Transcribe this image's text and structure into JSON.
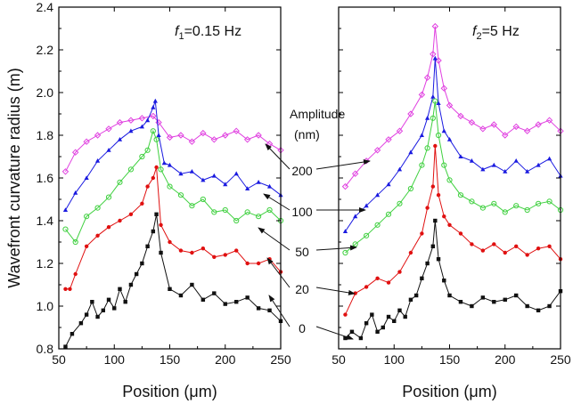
{
  "chart_data": {
    "type": "line",
    "ylabel": "Wavefront curvature radius (m)",
    "ylim": [
      0.8,
      2.4
    ],
    "yticks": [
      "0.8",
      "1.0",
      "1.2",
      "1.4",
      "1.6",
      "1.8",
      "2.0",
      "2.2",
      "2.4"
    ],
    "legend_title": "Amplitude",
    "legend_unit": "(nm)",
    "amplitude_labels": [
      "200",
      "100",
      "50",
      "20",
      "0"
    ],
    "panels": [
      {
        "xlabel": "Position (μm)",
        "xlim": [
          50,
          250
        ],
        "xticks": [
          "50",
          "100",
          "150",
          "200",
          "250"
        ],
        "freq_sym": "f",
        "freq_sub": "1",
        "freq_val": "=0.15 Hz",
        "series": [
          {
            "name": "200",
            "color": "#e040e0",
            "marker": "diamond-open",
            "x": [
              56,
              65,
              75,
              85,
              95,
              105,
              115,
              125,
              135,
              140,
              150,
              160,
              170,
              180,
              190,
              200,
              210,
              220,
              230,
              240,
              250
            ],
            "y": [
              1.63,
              1.72,
              1.77,
              1.8,
              1.83,
              1.86,
              1.87,
              1.88,
              1.89,
              1.86,
              1.79,
              1.8,
              1.77,
              1.81,
              1.78,
              1.8,
              1.82,
              1.78,
              1.8,
              1.76,
              1.73
            ]
          },
          {
            "name": "100",
            "color": "#1a1ae0",
            "marker": "triangle",
            "x": [
              56,
              65,
              75,
              85,
              95,
              105,
              115,
              125,
              130,
              135,
              137,
              140,
              145,
              150,
              160,
              170,
              180,
              190,
              200,
              210,
              220,
              230,
              240,
              250
            ],
            "y": [
              1.45,
              1.53,
              1.6,
              1.68,
              1.73,
              1.78,
              1.82,
              1.84,
              1.87,
              1.93,
              1.96,
              1.8,
              1.67,
              1.66,
              1.62,
              1.63,
              1.59,
              1.61,
              1.57,
              1.62,
              1.55,
              1.58,
              1.56,
              1.52
            ]
          },
          {
            "name": "50",
            "color": "#40d040",
            "marker": "circle-open",
            "x": [
              56,
              65,
              75,
              85,
              95,
              105,
              115,
              125,
              130,
              135,
              138,
              142,
              150,
              160,
              170,
              180,
              190,
              200,
              210,
              220,
              230,
              240,
              250
            ],
            "y": [
              1.36,
              1.3,
              1.42,
              1.46,
              1.51,
              1.58,
              1.64,
              1.7,
              1.73,
              1.82,
              1.78,
              1.64,
              1.56,
              1.52,
              1.47,
              1.5,
              1.44,
              1.45,
              1.4,
              1.44,
              1.42,
              1.45,
              1.4
            ]
          },
          {
            "name": "20",
            "color": "#e01010",
            "marker": "circle",
            "x": [
              56,
              60,
              65,
              75,
              85,
              95,
              105,
              115,
              125,
              130,
              135,
              138,
              142,
              150,
              160,
              170,
              180,
              190,
              200,
              210,
              220,
              230,
              240,
              250
            ],
            "y": [
              1.08,
              1.08,
              1.15,
              1.28,
              1.33,
              1.37,
              1.4,
              1.43,
              1.48,
              1.56,
              1.6,
              1.65,
              1.38,
              1.3,
              1.26,
              1.25,
              1.27,
              1.23,
              1.24,
              1.26,
              1.2,
              1.2,
              1.22,
              1.16
            ]
          },
          {
            "name": "0",
            "color": "#111111",
            "marker": "square",
            "x": [
              56,
              62,
              70,
              75,
              80,
              85,
              90,
              95,
              100,
              105,
              110,
              115,
              120,
              125,
              130,
              135,
              138,
              142,
              150,
              160,
              170,
              180,
              190,
              200,
              210,
              220,
              230,
              240,
              250
            ],
            "y": [
              0.81,
              0.87,
              0.92,
              0.96,
              1.02,
              0.95,
              0.98,
              1.03,
              0.99,
              1.08,
              1.02,
              1.1,
              1.15,
              1.2,
              1.28,
              1.35,
              1.43,
              1.25,
              1.08,
              1.05,
              1.1,
              1.03,
              1.06,
              1.01,
              1.02,
              1.04,
              0.99,
              0.98,
              0.93
            ]
          }
        ]
      },
      {
        "xlabel": "Position (μm)",
        "xlim": [
          50,
          250
        ],
        "xticks": [
          "50",
          "100",
          "150",
          "200",
          "250"
        ],
        "freq_sym": "f",
        "freq_sub": "2",
        "freq_val": "=5 Hz",
        "series": [
          {
            "name": "200",
            "color": "#e040e0",
            "marker": "diamond-open",
            "x": [
              56,
              65,
              75,
              85,
              95,
              105,
              115,
              125,
              130,
              135,
              137,
              140,
              145,
              150,
              160,
              170,
              180,
              190,
              200,
              210,
              220,
              230,
              240,
              250
            ],
            "y": [
              1.56,
              1.62,
              1.68,
              1.73,
              1.78,
              1.82,
              1.9,
              1.99,
              2.07,
              2.18,
              2.31,
              2.15,
              2.02,
              1.94,
              1.89,
              1.86,
              1.83,
              1.85,
              1.8,
              1.84,
              1.82,
              1.85,
              1.87,
              1.82
            ]
          },
          {
            "name": "100",
            "color": "#1a1ae0",
            "marker": "triangle",
            "x": [
              56,
              65,
              75,
              85,
              95,
              105,
              115,
              125,
              130,
              135,
              137,
              140,
              145,
              150,
              160,
              170,
              180,
              190,
              200,
              210,
              220,
              230,
              240,
              250
            ],
            "y": [
              1.35,
              1.42,
              1.47,
              1.52,
              1.57,
              1.64,
              1.72,
              1.8,
              1.88,
              1.98,
              2.16,
              1.95,
              1.82,
              1.78,
              1.7,
              1.68,
              1.64,
              1.66,
              1.63,
              1.68,
              1.63,
              1.66,
              1.69,
              1.61
            ]
          },
          {
            "name": "50",
            "color": "#40d040",
            "marker": "circle-open",
            "x": [
              56,
              65,
              75,
              85,
              95,
              105,
              115,
              125,
              130,
              135,
              137,
              140,
              145,
              150,
              160,
              170,
              180,
              190,
              200,
              210,
              220,
              230,
              240,
              250
            ],
            "y": [
              1.25,
              1.29,
              1.33,
              1.38,
              1.43,
              1.48,
              1.55,
              1.66,
              1.74,
              1.88,
              1.96,
              1.8,
              1.66,
              1.59,
              1.52,
              1.49,
              1.46,
              1.48,
              1.44,
              1.47,
              1.45,
              1.48,
              1.49,
              1.45
            ]
          },
          {
            "name": "20",
            "color": "#e01010",
            "marker": "circle",
            "x": [
              56,
              65,
              75,
              85,
              95,
              105,
              115,
              125,
              130,
              135,
              137,
              140,
              145,
              150,
              160,
              170,
              180,
              190,
              200,
              210,
              220,
              230,
              240,
              250
            ],
            "y": [
              0.96,
              1.06,
              1.09,
              1.13,
              1.11,
              1.16,
              1.25,
              1.34,
              1.46,
              1.56,
              1.75,
              1.52,
              1.42,
              1.38,
              1.34,
              1.29,
              1.26,
              1.29,
              1.25,
              1.28,
              1.24,
              1.27,
              1.28,
              1.22
            ]
          },
          {
            "name": "0",
            "color": "#111111",
            "marker": "square",
            "x": [
              56,
              62,
              70,
              75,
              80,
              85,
              90,
              95,
              100,
              105,
              110,
              115,
              120,
              125,
              130,
              135,
              137,
              140,
              145,
              150,
              160,
              170,
              180,
              190,
              200,
              210,
              220,
              230,
              240,
              250
            ],
            "y": [
              0.85,
              0.88,
              0.85,
              0.92,
              0.96,
              0.88,
              0.9,
              0.95,
              0.93,
              0.98,
              0.95,
              1.03,
              1.05,
              1.13,
              1.2,
              1.28,
              1.4,
              1.22,
              1.12,
              1.05,
              1.02,
              1.0,
              1.04,
              1.02,
              1.03,
              1.05,
              1.0,
              0.98,
              1.0,
              1.07
            ]
          }
        ]
      }
    ]
  }
}
